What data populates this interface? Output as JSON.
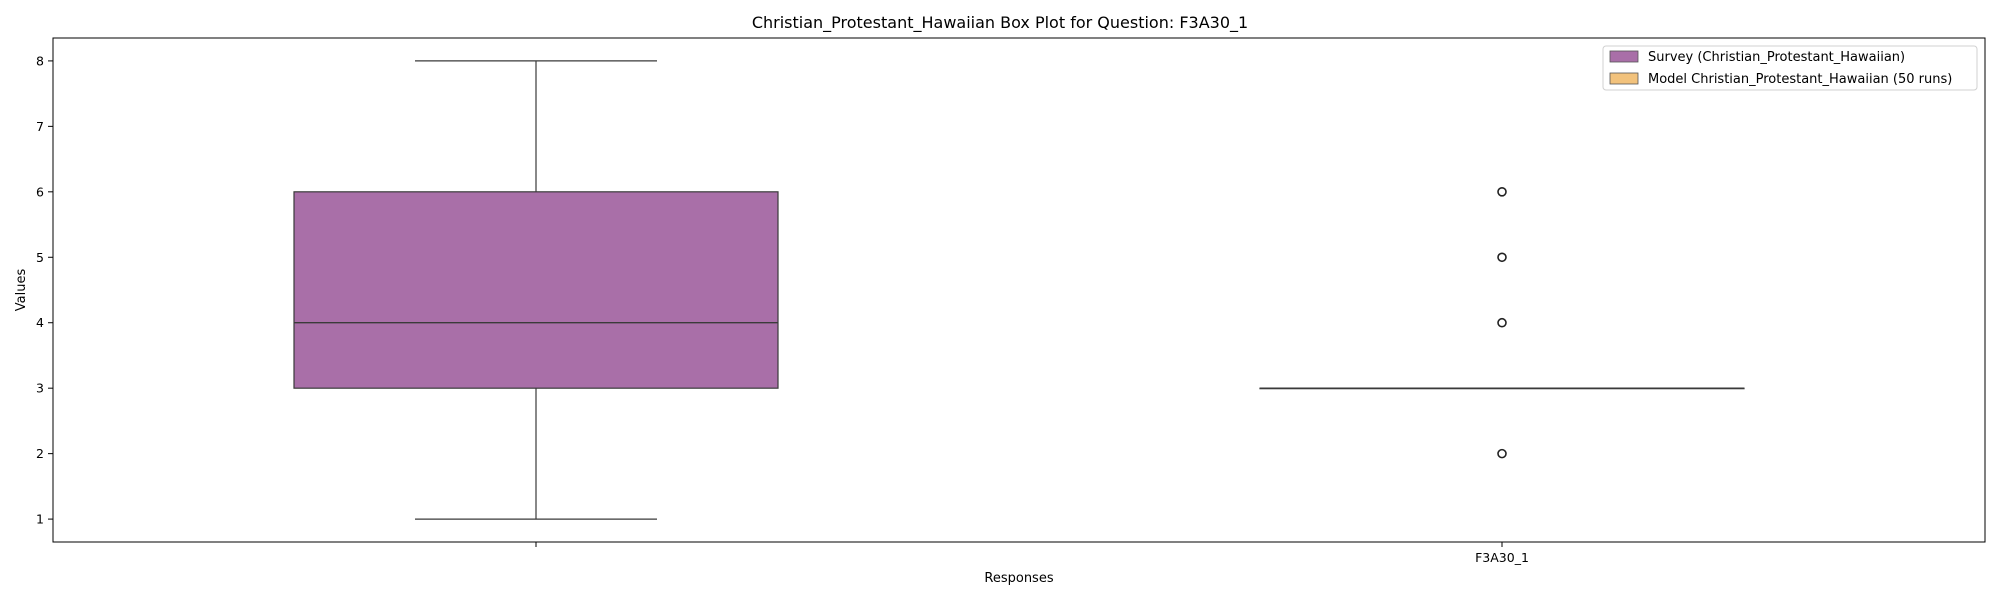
{
  "chart_data": {
    "type": "box",
    "title": "Christian_Protestant_Hawaiian Box Plot for Question: F3A30_1",
    "xlabel": "Responses",
    "ylabel": "Values",
    "x_tick_labels": [
      "",
      "F3A30_1"
    ],
    "y_ticks": [
      1,
      2,
      3,
      4,
      5,
      6,
      7,
      8
    ],
    "ylim": [
      0.65,
      8.35
    ],
    "grid": false,
    "legend_position": "top-right",
    "series": [
      {
        "name": "Survey (Christian_Protestant_Hawaiian)",
        "color": "#a96fa8",
        "whisker_low": 1,
        "q1": 3,
        "median": 4,
        "q3": 6,
        "whisker_high": 8,
        "outliers": []
      },
      {
        "name": "Model Christian_Protestant_Hawaiian (50 runs)",
        "color": "#f2c27c",
        "whisker_low": 3,
        "q1": 3,
        "median": 3,
        "q3": 3,
        "whisker_high": 3,
        "outliers": [
          2,
          4,
          5,
          6
        ]
      }
    ]
  }
}
